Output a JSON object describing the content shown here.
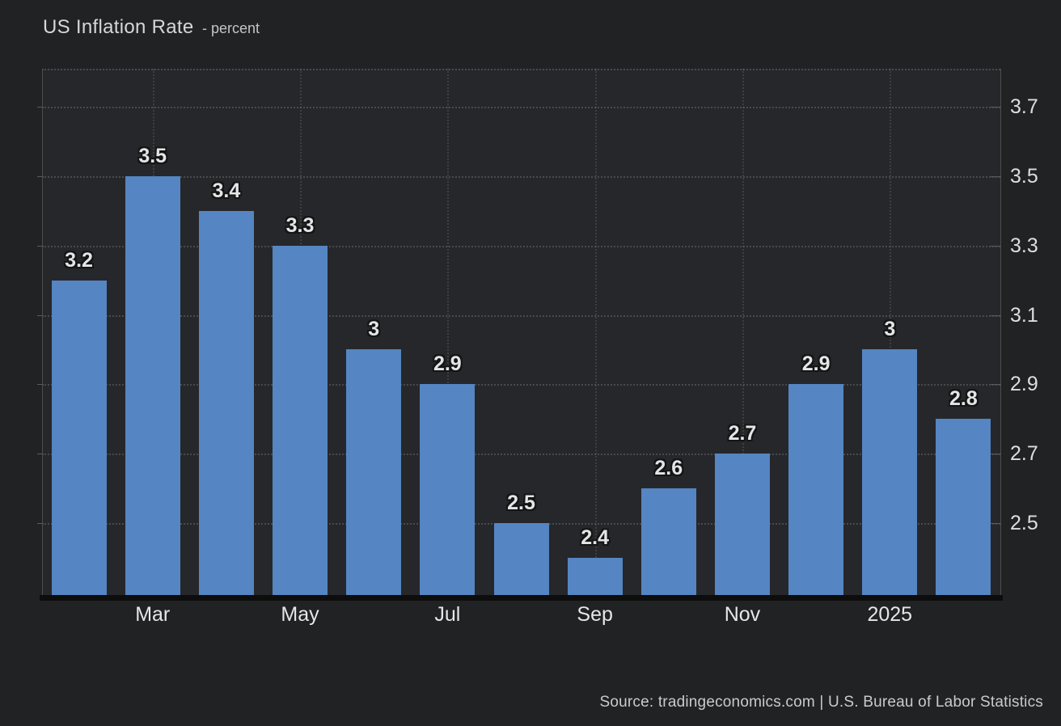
{
  "header": {
    "title": "US Inflation Rate",
    "subtitle": "- percent"
  },
  "footer": {
    "source": "Source: tradingeconomics.com | U.S. Bureau of Labor Statistics"
  },
  "colors": {
    "page_background": "#212224",
    "plot_background": "#26272a",
    "bar": "#5585c3",
    "grid_dotted": "#97979a",
    "y_axis_line": "#4c4d4f",
    "x_axis_line": "#0d0d0e",
    "value_label_text": "#e4e5e7",
    "value_label_outline": "#151516",
    "tick_label_text": "#dededf",
    "title_text": "#d6d7d9",
    "source_text": "#c9cacc"
  },
  "chart_data": {
    "type": "bar",
    "title": "US Inflation Rate",
    "subtitle": "- percent",
    "ylabel": "percent",
    "values": [
      3.2,
      3.5,
      3.4,
      3.3,
      3.0,
      2.9,
      2.5,
      2.4,
      2.6,
      2.7,
      2.9,
      3.0,
      2.8
    ],
    "data_labels": [
      "3.2",
      "3.5",
      "3.4",
      "3.3",
      "3",
      "2.9",
      "2.5",
      "2.4",
      "2.6",
      "2.7",
      "2.9",
      "3",
      "2.8"
    ],
    "x_ticks": [
      {
        "bar_index": 1,
        "label": "Mar"
      },
      {
        "bar_index": 3,
        "label": "May"
      },
      {
        "bar_index": 5,
        "label": "Jul"
      },
      {
        "bar_index": 7,
        "label": "Sep"
      },
      {
        "bar_index": 9,
        "label": "Nov"
      },
      {
        "bar_index": 11,
        "label": "2025"
      }
    ],
    "y_ticks": [
      "3.7",
      "3.5",
      "3.3",
      "3.1",
      "2.9",
      "2.7",
      "2.5"
    ],
    "ylim": [
      2.29,
      3.81
    ],
    "grid": "dotted horizontal and vertical at labeled ticks",
    "legend": "none",
    "y_axis_position": "right",
    "source": "Source: tradingeconomics.com | U.S. Bureau of Labor Statistics"
  }
}
